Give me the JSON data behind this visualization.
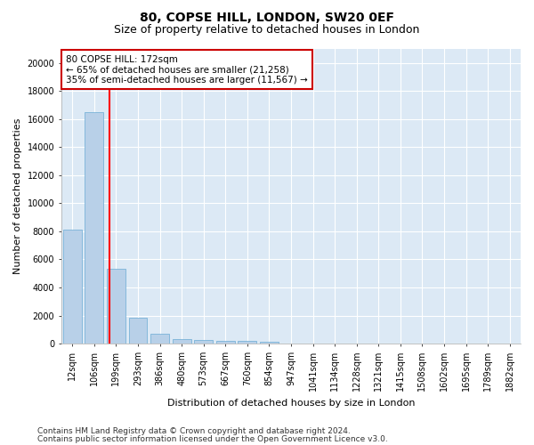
{
  "title1": "80, COPSE HILL, LONDON, SW20 0EF",
  "title2": "Size of property relative to detached houses in London",
  "xlabel": "Distribution of detached houses by size in London",
  "ylabel": "Number of detached properties",
  "categories": [
    "12sqm",
    "106sqm",
    "199sqm",
    "293sqm",
    "386sqm",
    "480sqm",
    "573sqm",
    "667sqm",
    "760sqm",
    "854sqm",
    "947sqm",
    "1041sqm",
    "1134sqm",
    "1228sqm",
    "1321sqm",
    "1415sqm",
    "1508sqm",
    "1602sqm",
    "1695sqm",
    "1789sqm",
    "1882sqm"
  ],
  "values": [
    8100,
    16500,
    5300,
    1850,
    700,
    350,
    270,
    210,
    170,
    130,
    0,
    0,
    0,
    0,
    0,
    0,
    0,
    0,
    0,
    0,
    0
  ],
  "bar_color": "#b8d0e8",
  "bar_edge_color": "#6aaad4",
  "annotation_text": "80 COPSE HILL: 172sqm\n← 65% of detached houses are smaller (21,258)\n35% of semi-detached houses are larger (11,567) →",
  "annotation_box_color": "#ffffff",
  "annotation_box_edge": "#cc0000",
  "red_line_x": 1.72,
  "ylim": [
    0,
    21000
  ],
  "yticks": [
    0,
    2000,
    4000,
    6000,
    8000,
    10000,
    12000,
    14000,
    16000,
    18000,
    20000
  ],
  "footer1": "Contains HM Land Registry data © Crown copyright and database right 2024.",
  "footer2": "Contains public sector information licensed under the Open Government Licence v3.0.",
  "fig_bg_color": "#ffffff",
  "plot_bg_color": "#dce9f5",
  "grid_color": "#ffffff",
  "title1_fontsize": 10,
  "title2_fontsize": 9,
  "tick_fontsize": 7,
  "ylabel_fontsize": 8,
  "xlabel_fontsize": 8,
  "footer_fontsize": 6.5,
  "ann_fontsize": 7.5
}
